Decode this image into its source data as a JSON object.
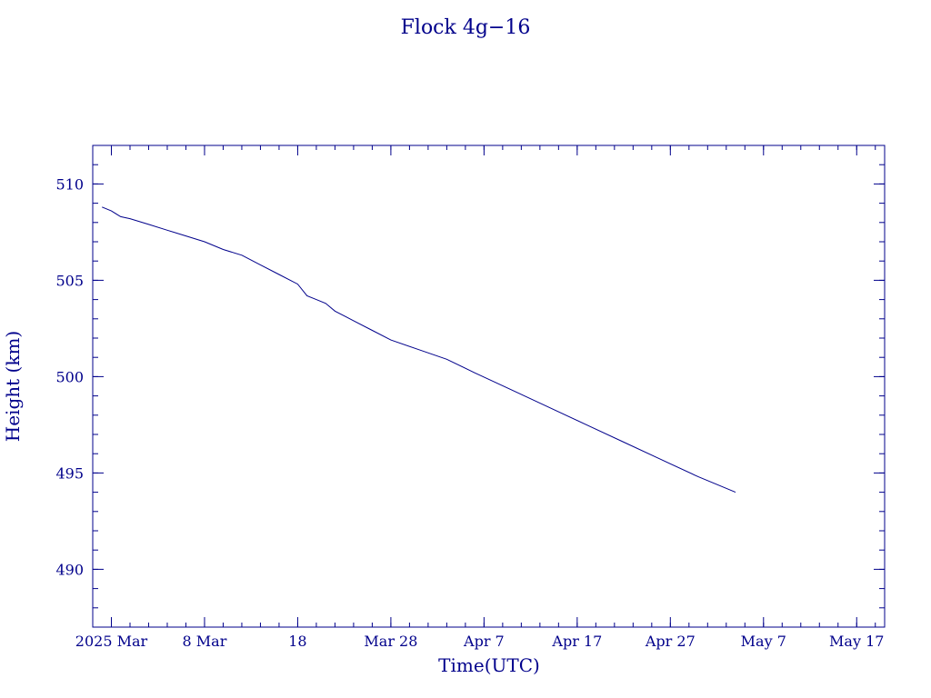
{
  "chart_data": {
    "type": "line",
    "title": "Flock 4g−16",
    "xlabel": "Time(UTC)",
    "ylabel": "Height (km)",
    "x_range": [
      "2025-02-24",
      "2025-05-20"
    ],
    "ylim": [
      487,
      512
    ],
    "x_ticks": [
      {
        "date": "2025-02-26",
        "label": "2025 Mar"
      },
      {
        "date": "2025-03-08",
        "label": "8 Mar"
      },
      {
        "date": "2025-03-18",
        "label": "18"
      },
      {
        "date": "2025-03-28",
        "label": "Mar 28"
      },
      {
        "date": "2025-04-07",
        "label": "Apr  7"
      },
      {
        "date": "2025-04-17",
        "label": "Apr 17"
      },
      {
        "date": "2025-04-27",
        "label": "Apr 27"
      },
      {
        "date": "2025-05-07",
        "label": "May  7"
      },
      {
        "date": "2025-05-17",
        "label": "May 17"
      }
    ],
    "y_ticks": [
      490,
      495,
      500,
      505,
      510
    ],
    "grid": false,
    "series": [
      {
        "x": [
          "2025-02-25",
          "2025-02-26",
          "2025-02-27",
          "2025-02-28",
          "2025-03-02",
          "2025-03-04",
          "2025-03-06",
          "2025-03-08",
          "2025-03-10",
          "2025-03-12",
          "2025-03-14",
          "2025-03-16",
          "2025-03-18",
          "2025-03-19",
          "2025-03-20",
          "2025-03-21",
          "2025-03-22",
          "2025-03-24",
          "2025-03-26",
          "2025-03-28",
          "2025-03-31",
          "2025-04-03",
          "2025-04-06",
          "2025-04-10",
          "2025-04-14",
          "2025-04-18",
          "2025-04-22",
          "2025-04-26",
          "2025-04-30",
          "2025-05-04"
        ],
        "y": [
          508.8,
          508.6,
          508.3,
          508.2,
          507.9,
          507.6,
          507.3,
          507.0,
          506.6,
          506.3,
          505.8,
          505.3,
          504.8,
          504.2,
          504.0,
          503.8,
          503.4,
          502.9,
          502.4,
          501.9,
          501.4,
          500.9,
          500.2,
          499.3,
          498.4,
          497.5,
          496.6,
          495.7,
          494.8,
          494.0
        ]
      }
    ],
    "line_color": "#00008b"
  }
}
